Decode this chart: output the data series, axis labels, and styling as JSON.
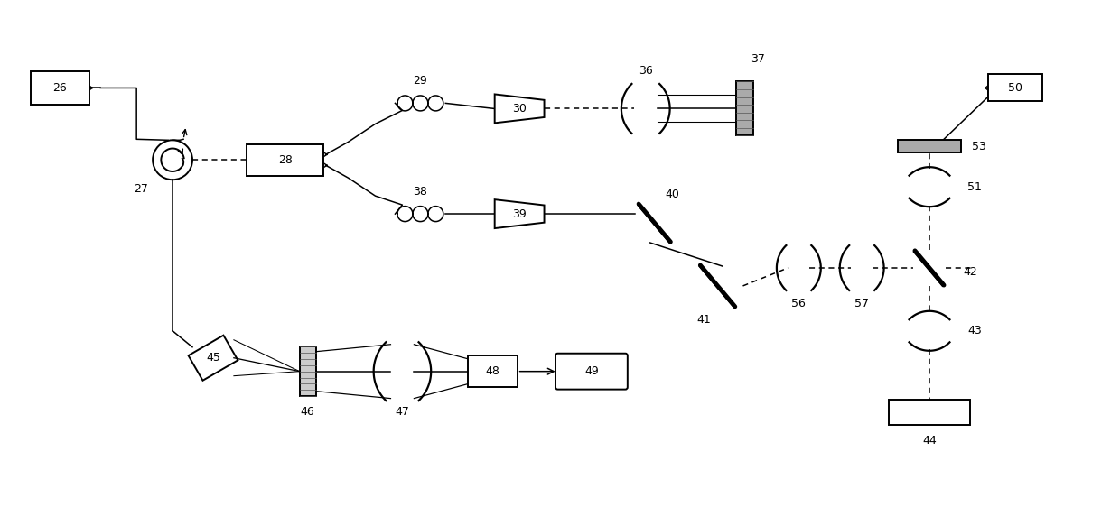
{
  "fig_width": 12.4,
  "fig_height": 5.62,
  "bg_color": "#ffffff",
  "lc": "#000000",
  "lw": 1.1,
  "blw": 1.4
}
